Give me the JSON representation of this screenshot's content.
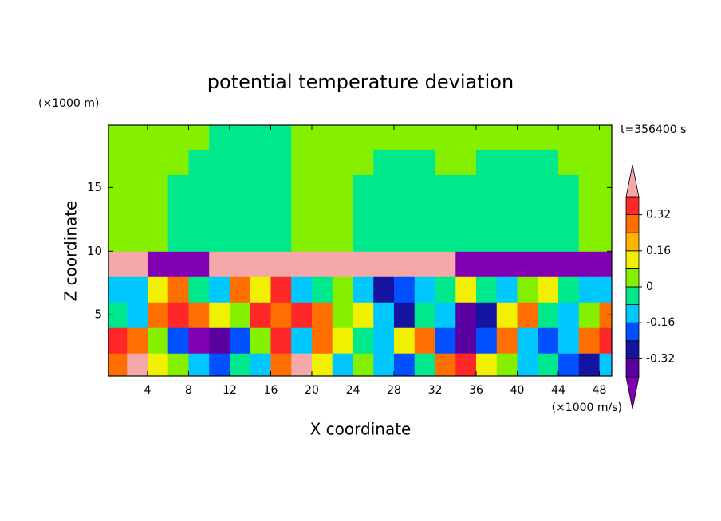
{
  "chart_data": {
    "type": "contour",
    "title": "potential temperature deviation",
    "xlabel": "X coordinate",
    "ylabel": "Z coordinate",
    "x_unit": "(×1000 m/s)",
    "y_unit": "(×1000 m)",
    "annotation": "t=356400 s",
    "xlim": [
      0.2,
      49.2
    ],
    "ylim": [
      0.2,
      19.9
    ],
    "xticks": [
      4,
      8,
      12,
      16,
      20,
      24,
      28,
      32,
      36,
      40,
      44,
      48
    ],
    "yticks": [
      5,
      10,
      15
    ],
    "levels": [
      -0.4,
      -0.32,
      -0.24,
      -0.16,
      -0.08,
      0,
      0.08,
      0.16,
      0.24,
      0.32,
      0.4
    ],
    "colors": [
      "#5a00a0",
      "#1414a0",
      "#0050ff",
      "#00c8ff",
      "#00e88c",
      "#84f000",
      "#f0f000",
      "#ffb400",
      "#ff6e00",
      "#ff2828"
    ],
    "under_color": "#8200b4",
    "over_color": "#f4a8a8",
    "colorbar_ticks": [
      -0.32,
      -0.16,
      0,
      0.16,
      0.32
    ],
    "x": [
      1,
      3,
      5,
      7,
      9,
      11,
      13,
      15,
      17,
      19,
      21,
      23,
      25,
      27,
      29,
      31,
      33,
      35,
      37,
      39,
      41,
      43,
      45,
      47,
      49
    ],
    "z": [
      1,
      3,
      5,
      7,
      9,
      11,
      13,
      15,
      17,
      19
    ],
    "values": [
      [
        0.28,
        0.45,
        0.12,
        0.04,
        -0.12,
        -0.2,
        -0.04,
        -0.12,
        0.28,
        0.45,
        0.12,
        -0.12,
        0.04,
        -0.12,
        -0.2,
        -0.04,
        0.28,
        0.36,
        0.12,
        0.04,
        -0.12,
        -0.04,
        -0.2,
        -0.28,
        -0.12
      ],
      [
        0.36,
        0.28,
        0.04,
        -0.2,
        -0.45,
        -0.36,
        -0.2,
        0.04,
        0.36,
        -0.12,
        0.28,
        0.12,
        -0.04,
        -0.12,
        0.12,
        0.28,
        -0.2,
        -0.36,
        -0.2,
        0.28,
        -0.12,
        -0.2,
        -0.12,
        0.28,
        0.36
      ],
      [
        -0.04,
        -0.12,
        0.28,
        0.36,
        0.28,
        0.12,
        0.04,
        0.36,
        0.28,
        0.36,
        0.28,
        0.04,
        0.12,
        -0.12,
        -0.28,
        -0.04,
        -0.12,
        -0.36,
        -0.28,
        0.12,
        0.28,
        -0.04,
        -0.12,
        0.04,
        0.28
      ],
      [
        -0.12,
        -0.12,
        0.12,
        0.28,
        -0.04,
        -0.12,
        0.28,
        0.12,
        0.36,
        -0.12,
        -0.04,
        0.04,
        -0.12,
        -0.28,
        -0.2,
        -0.12,
        -0.04,
        0.12,
        -0.04,
        -0.12,
        0.04,
        0.12,
        -0.04,
        -0.12,
        -0.12
      ],
      [
        0.45,
        0.45,
        -0.45,
        -0.45,
        -0.45,
        0.45,
        0.45,
        0.45,
        0.45,
        0.45,
        0.45,
        0.45,
        0.45,
        0.45,
        0.45,
        0.45,
        0.45,
        -0.45,
        -0.45,
        -0.45,
        -0.45,
        -0.45,
        -0.45,
        -0.45,
        -0.45
      ],
      [
        0.04,
        0.04,
        0.04,
        -0.04,
        -0.04,
        -0.04,
        -0.04,
        -0.04,
        -0.04,
        0.04,
        0.04,
        0.04,
        -0.04,
        -0.04,
        -0.04,
        -0.04,
        -0.04,
        -0.04,
        -0.04,
        -0.04,
        -0.04,
        -0.04,
        -0.04,
        0.04,
        0.04
      ],
      [
        0.04,
        0.04,
        0.04,
        -0.04,
        -0.04,
        -0.04,
        -0.04,
        -0.04,
        -0.04,
        0.04,
        0.04,
        0.04,
        -0.04,
        -0.04,
        -0.04,
        -0.04,
        -0.04,
        -0.04,
        -0.04,
        -0.04,
        -0.04,
        -0.04,
        -0.04,
        0.04,
        0.04
      ],
      [
        0.04,
        0.04,
        0.04,
        -0.04,
        -0.04,
        -0.04,
        -0.04,
        -0.04,
        -0.04,
        0.04,
        0.04,
        0.04,
        -0.04,
        -0.04,
        -0.04,
        -0.04,
        -0.04,
        -0.04,
        -0.04,
        -0.04,
        -0.04,
        -0.04,
        -0.04,
        0.04,
        0.04
      ],
      [
        0.04,
        0.04,
        0.04,
        0.04,
        -0.04,
        -0.04,
        -0.04,
        -0.04,
        -0.04,
        0.04,
        0.04,
        0.04,
        0.04,
        -0.04,
        -0.04,
        -0.04,
        0.04,
        0.04,
        -0.04,
        -0.04,
        -0.04,
        -0.04,
        0.04,
        0.04,
        0.04
      ],
      [
        0.04,
        0.04,
        0.04,
        0.04,
        0.04,
        -0.04,
        -0.04,
        -0.04,
        -0.04,
        0.04,
        0.04,
        0.04,
        0.04,
        0.04,
        0.04,
        0.04,
        0.04,
        0.04,
        0.04,
        0.04,
        0.04,
        0.04,
        0.04,
        0.04,
        0.04
      ]
    ]
  }
}
